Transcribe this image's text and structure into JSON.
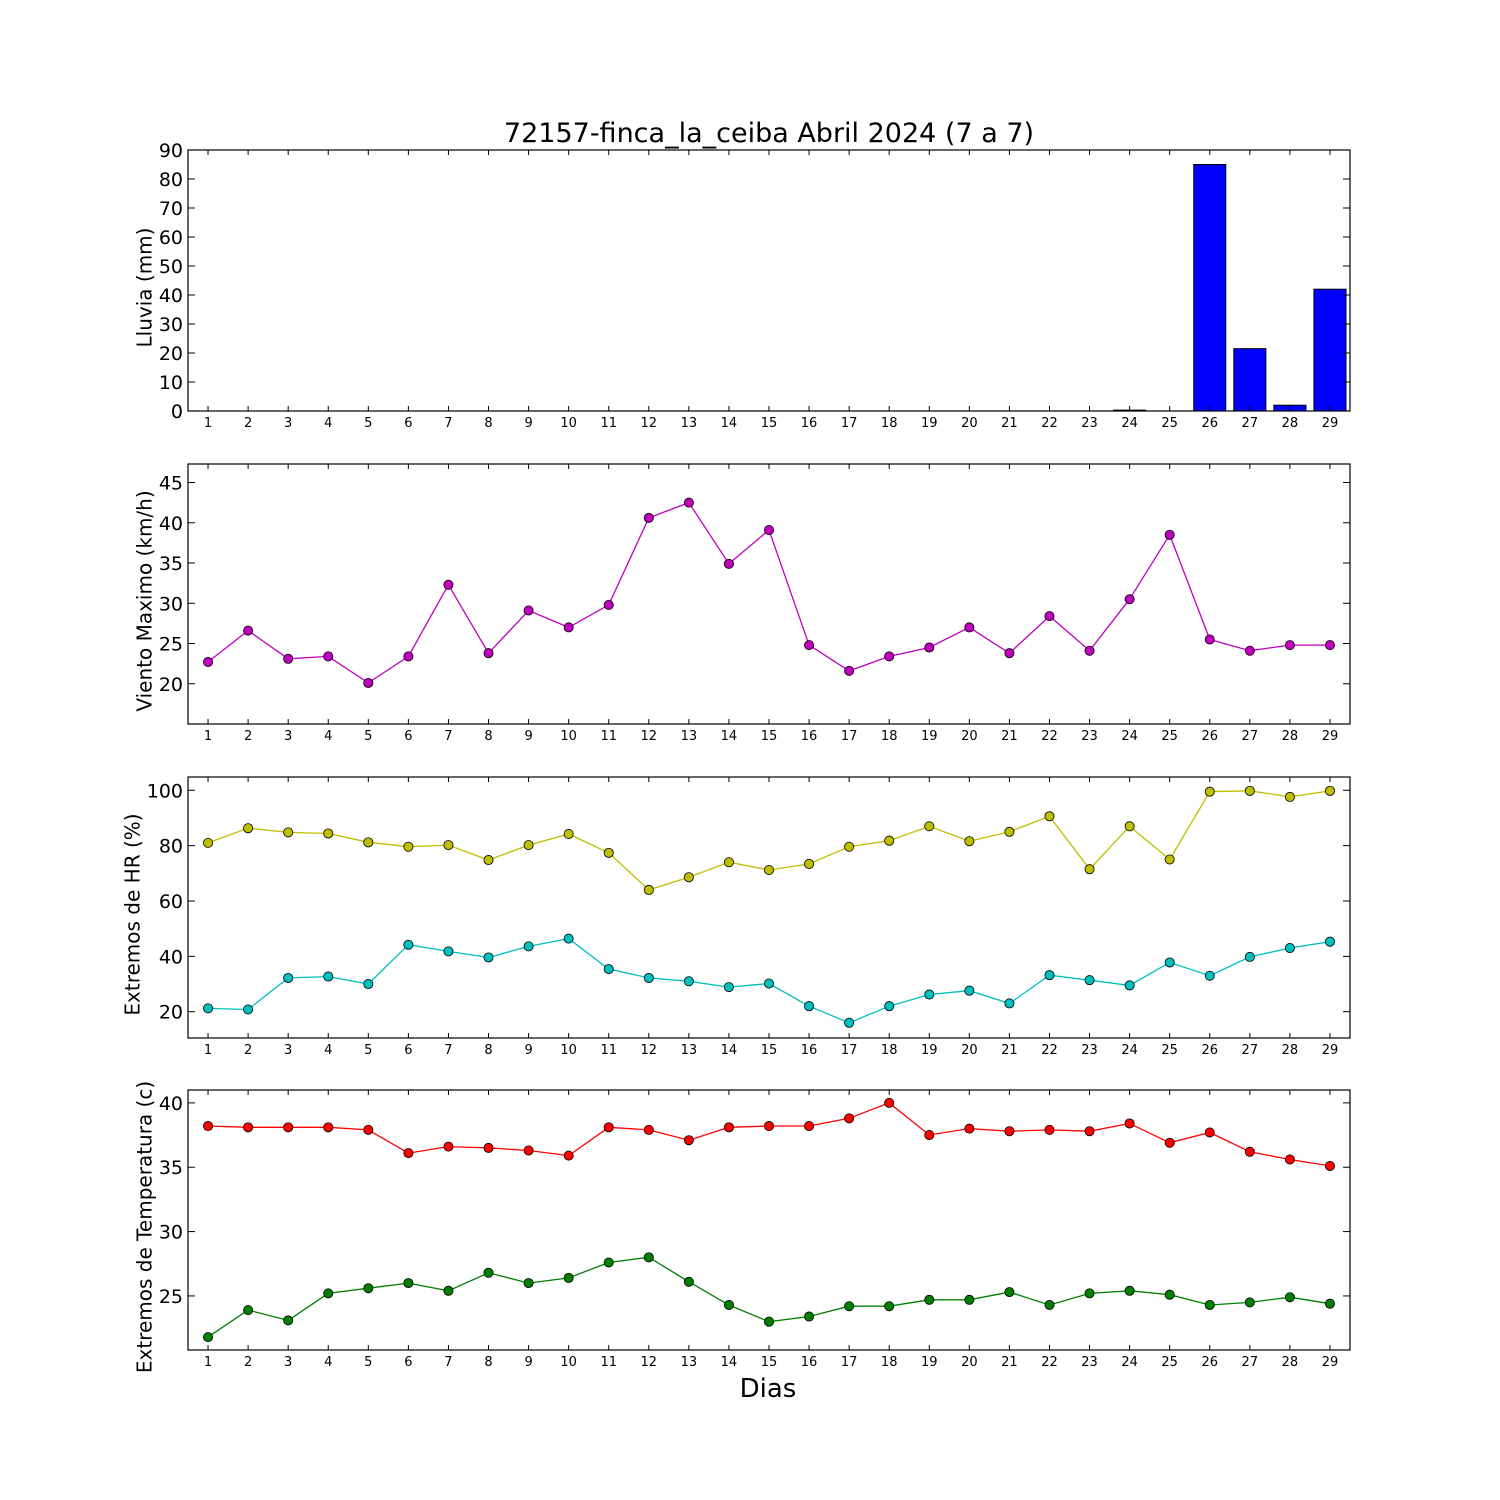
{
  "figure": {
    "title": "72157-finca_la_ceiba Abril 2024  (7 a 7)",
    "xlabel": "Dias"
  },
  "chart_data": [
    {
      "type": "bar",
      "ylabel": "Lluvia (mm)",
      "xlim": [
        0.5,
        29.5
      ],
      "ylim": [
        0,
        90
      ],
      "yticks": [
        0,
        10,
        20,
        30,
        40,
        50,
        60,
        70,
        80,
        90
      ],
      "x": [
        1,
        2,
        3,
        4,
        5,
        6,
        7,
        8,
        9,
        10,
        11,
        12,
        13,
        14,
        15,
        16,
        17,
        18,
        19,
        20,
        21,
        22,
        23,
        24,
        25,
        26,
        27,
        28,
        29
      ],
      "series": [
        {
          "color": "#0000ff",
          "values": [
            0,
            0,
            0,
            0,
            0,
            0,
            0,
            0,
            0,
            0,
            0,
            0,
            0,
            0,
            0,
            0,
            0,
            0,
            0,
            0,
            0,
            0,
            0,
            0.3,
            0,
            85,
            21.5,
            2,
            42
          ]
        }
      ]
    },
    {
      "type": "line",
      "ylabel": "Viento Maximo (km/h)",
      "xlim": [
        0.5,
        29.5
      ],
      "ylim": [
        15,
        47.3
      ],
      "yticks": [
        20,
        25,
        30,
        35,
        40,
        45
      ],
      "x": [
        1,
        2,
        3,
        4,
        5,
        6,
        7,
        8,
        9,
        10,
        11,
        12,
        13,
        14,
        15,
        16,
        17,
        18,
        19,
        20,
        21,
        22,
        23,
        24,
        25,
        26,
        27,
        28,
        29
      ],
      "series": [
        {
          "color": "#bf00bf",
          "values": [
            22.7,
            26.6,
            23.1,
            23.4,
            20.1,
            23.4,
            32.3,
            23.8,
            29.1,
            27.0,
            29.8,
            40.6,
            42.5,
            34.9,
            39.1,
            24.8,
            21.6,
            23.4,
            24.5,
            27.0,
            23.8,
            28.4,
            24.1,
            30.5,
            38.5,
            25.5,
            24.1,
            24.8,
            24.8
          ]
        }
      ]
    },
    {
      "type": "line",
      "ylabel": "Extremos de HR (%)",
      "xlim": [
        0.5,
        29.5
      ],
      "ylim": [
        10.5,
        104.8
      ],
      "yticks": [
        20,
        40,
        60,
        80,
        100
      ],
      "x": [
        1,
        2,
        3,
        4,
        5,
        6,
        7,
        8,
        9,
        10,
        11,
        12,
        13,
        14,
        15,
        16,
        17,
        18,
        19,
        20,
        21,
        22,
        23,
        24,
        25,
        26,
        27,
        28,
        29
      ],
      "series": [
        {
          "color": "#bfbf00",
          "values": [
            81,
            86.3,
            84.8,
            84.4,
            81.2,
            79.6,
            80.2,
            74.8,
            80.2,
            84.2,
            77.4,
            64,
            68.6,
            74,
            71.2,
            73.4,
            79.6,
            81.8,
            87,
            81.6,
            85,
            90.6,
            71.5,
            87,
            75,
            99.5,
            99.8,
            97.6,
            99.8
          ]
        },
        {
          "color": "#00bfbf",
          "values": [
            21.2,
            20.8,
            32.2,
            32.7,
            30,
            44.2,
            41.8,
            39.6,
            43.6,
            46.4,
            35.4,
            32.2,
            31,
            28.9,
            30.2,
            22,
            16,
            22,
            26.2,
            27.6,
            23,
            33.2,
            31.4,
            29.5,
            37.8,
            33,
            39.8,
            43,
            45.3
          ]
        }
      ]
    },
    {
      "type": "line",
      "ylabel": "Extremos de Temperatura (c)",
      "xlim": [
        0.5,
        29.5
      ],
      "ylim": [
        20.8,
        41
      ],
      "yticks": [
        25,
        30,
        35,
        40
      ],
      "x": [
        1,
        2,
        3,
        4,
        5,
        6,
        7,
        8,
        9,
        10,
        11,
        12,
        13,
        14,
        15,
        16,
        17,
        18,
        19,
        20,
        21,
        22,
        23,
        24,
        25,
        26,
        27,
        28,
        29
      ],
      "series": [
        {
          "color": "#ff0000",
          "values": [
            38.2,
            38.1,
            38.1,
            38.1,
            37.9,
            36.1,
            36.6,
            36.5,
            36.3,
            35.9,
            38.1,
            37.9,
            37.1,
            38.1,
            38.2,
            38.2,
            38.8,
            40,
            37.5,
            38,
            37.8,
            37.9,
            37.8,
            38.4,
            36.9,
            37.7,
            36.2,
            35.6,
            35.1
          ]
        },
        {
          "color": "#007f00",
          "values": [
            21.8,
            23.9,
            23.1,
            25.2,
            25.6,
            26,
            25.4,
            26.8,
            26,
            26.4,
            27.6,
            28,
            26.1,
            24.3,
            23,
            23.4,
            24.2,
            24.2,
            24.7,
            24.7,
            25.3,
            24.3,
            25.2,
            25.4,
            25.1,
            24.3,
            24.5,
            24.9,
            24.4
          ]
        }
      ]
    }
  ]
}
